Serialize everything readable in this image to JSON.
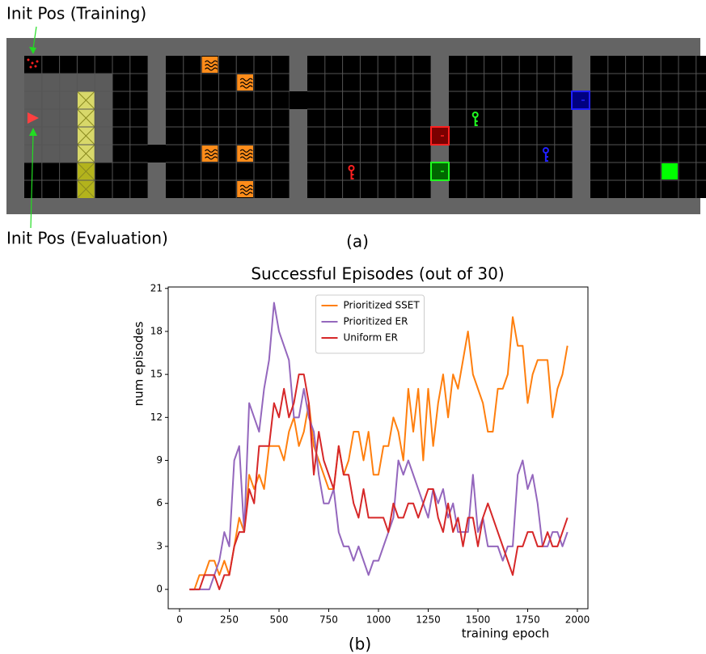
{
  "diagram": {
    "annotations": [
      "Init Pos (Training)",
      "Init Pos (Evaluation)"
    ],
    "caption": "(a)"
  },
  "chart_data": {
    "type": "line",
    "title": "Successful Episodes (out of 30)",
    "x_label": "training epoch",
    "y_label": "num episodes",
    "caption": "(b)",
    "x": [
      50,
      75,
      100,
      125,
      150,
      175,
      200,
      225,
      250,
      275,
      300,
      325,
      350,
      375,
      400,
      425,
      450,
      475,
      500,
      525,
      550,
      575,
      600,
      625,
      650,
      675,
      700,
      725,
      750,
      775,
      800,
      825,
      850,
      875,
      900,
      925,
      950,
      975,
      1000,
      1025,
      1050,
      1075,
      1100,
      1125,
      1150,
      1175,
      1200,
      1225,
      1250,
      1275,
      1300,
      1325,
      1350,
      1375,
      1400,
      1425,
      1450,
      1475,
      1500,
      1525,
      1550,
      1575,
      1600,
      1625,
      1650,
      1675,
      1700,
      1725,
      1750,
      1775,
      1800,
      1825,
      1850,
      1875,
      1900,
      1925,
      1950
    ],
    "series": [
      {
        "name": "Prioritized SSET",
        "color": "#ff7f0e",
        "values": [
          0,
          0,
          1,
          1,
          2,
          2,
          1,
          2,
          1,
          3,
          5,
          4,
          8,
          7,
          8,
          7,
          10,
          10,
          10,
          9,
          11,
          12,
          10,
          11,
          13,
          10,
          9,
          8,
          7,
          7,
          10,
          8,
          9,
          11,
          11,
          9,
          11,
          8,
          8,
          10,
          10,
          12,
          11,
          9,
          14,
          11,
          14,
          9,
          14,
          10,
          13,
          15,
          12,
          15,
          14,
          16,
          18,
          15,
          14,
          13,
          11,
          11,
          14,
          14,
          15,
          19,
          17,
          17,
          13,
          15,
          16,
          16,
          16,
          12,
          14,
          15,
          17
        ]
      },
      {
        "name": "Prioritized ER",
        "color": "#9467bd",
        "values": [
          0,
          0,
          0,
          0,
          0,
          1,
          2,
          4,
          3,
          9,
          10,
          4,
          13,
          12,
          11,
          14,
          16,
          20,
          18,
          17,
          16,
          12,
          12,
          14,
          12,
          11,
          8,
          6,
          6,
          7,
          4,
          3,
          3,
          2,
          3,
          2,
          1,
          2,
          2,
          3,
          4,
          5,
          9,
          8,
          9,
          8,
          7,
          6,
          5,
          7,
          6,
          7,
          5,
          6,
          4,
          4,
          4,
          8,
          4,
          5,
          3,
          3,
          3,
          2,
          3,
          3,
          8,
          9,
          7,
          8,
          6,
          3,
          3,
          4,
          4,
          3,
          4
        ]
      },
      {
        "name": "Uniform ER",
        "color": "#d62728",
        "values": [
          0,
          0,
          0,
          1,
          1,
          1,
          0,
          1,
          1,
          3,
          4,
          4,
          7,
          6,
          10,
          10,
          10,
          13,
          12,
          14,
          12,
          13,
          15,
          15,
          13,
          8,
          11,
          9,
          8,
          7,
          10,
          8,
          8,
          6,
          5,
          7,
          5,
          5,
          5,
          5,
          4,
          6,
          5,
          5,
          6,
          6,
          5,
          6,
          7,
          7,
          5,
          4,
          6,
          4,
          5,
          3,
          5,
          5,
          3,
          5,
          6,
          5,
          4,
          3,
          2,
          1,
          3,
          3,
          4,
          4,
          3,
          3,
          4,
          3,
          3,
          4,
          5
        ]
      }
    ],
    "xlim": [
      -57,
      2053
    ],
    "ylim": [
      -1.35,
      21.1
    ],
    "xticks": [
      0,
      250,
      500,
      750,
      1000,
      1250,
      1500,
      1750,
      2000
    ],
    "yticks": [
      0,
      3,
      6,
      9,
      12,
      15,
      18,
      21
    ],
    "legend": "upper center"
  }
}
